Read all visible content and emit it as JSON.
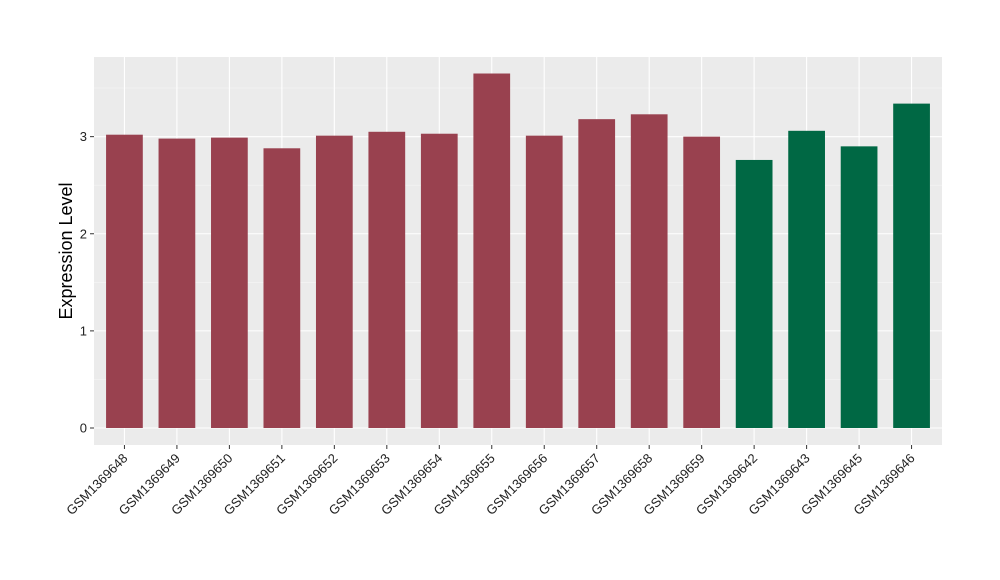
{
  "chart_data": {
    "type": "bar",
    "title": "",
    "xlabel": "",
    "ylabel": "Expression Level",
    "ylim": [
      -0.175,
      3.82
    ],
    "yticks": [
      0,
      1,
      2,
      3
    ],
    "grid": true,
    "categories": [
      "GSM1369648",
      "GSM1369649",
      "GSM1369650",
      "GSM1369651",
      "GSM1369652",
      "GSM1369653",
      "GSM1369654",
      "GSM1369655",
      "GSM1369656",
      "GSM1369657",
      "GSM1369658",
      "GSM1369659",
      "GSM1369642",
      "GSM1369643",
      "GSM1369645",
      "GSM1369646"
    ],
    "values": [
      3.02,
      2.98,
      2.99,
      2.88,
      3.01,
      3.05,
      3.03,
      3.65,
      3.01,
      3.18,
      3.23,
      3.0,
      2.76,
      3.06,
      2.9,
      3.34
    ],
    "groups": [
      "a",
      "a",
      "a",
      "a",
      "a",
      "a",
      "a",
      "a",
      "a",
      "a",
      "a",
      "a",
      "b",
      "b",
      "b",
      "b"
    ],
    "colors": {
      "a": "#99414F",
      "b": "#006844"
    },
    "legend": "none"
  }
}
